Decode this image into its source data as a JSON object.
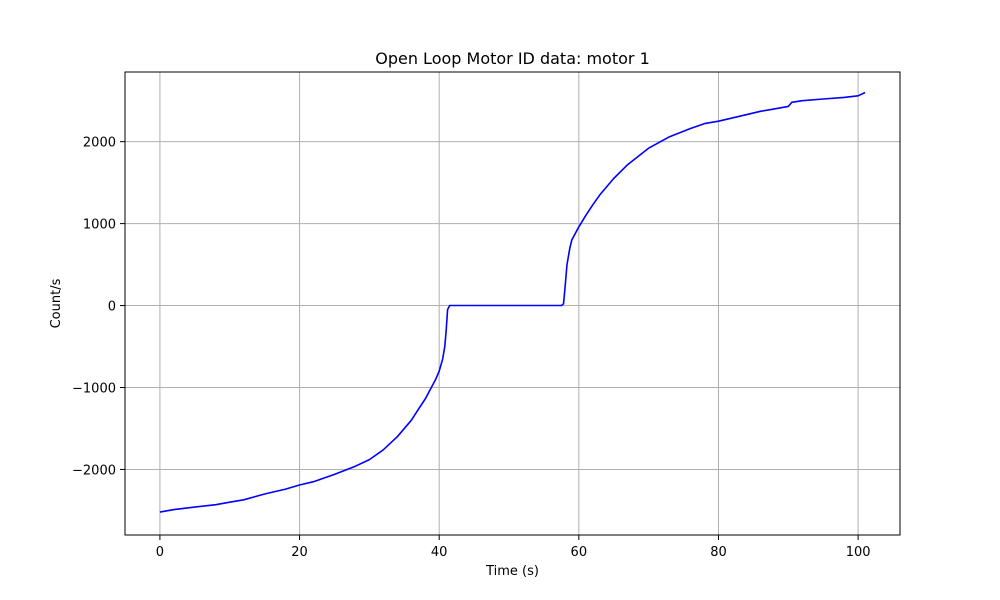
{
  "chart_data": {
    "type": "line",
    "title": "Open Loop Motor ID data: motor 1",
    "xlabel": "Time (s)",
    "ylabel": "Count/s",
    "xlim": [
      -5,
      106
    ],
    "ylim": [
      -2800,
      2850
    ],
    "xticks": [
      0,
      20,
      40,
      60,
      80,
      100
    ],
    "xtick_labels": [
      "0",
      "20",
      "40",
      "60",
      "80",
      "100"
    ],
    "yticks": [
      -2000,
      -1000,
      0,
      1000,
      2000
    ],
    "ytick_labels": [
      "−2000",
      "−1000",
      "0",
      "1000",
      "2000"
    ],
    "grid": true,
    "colors": {
      "line": "#0000ff",
      "grid": "#b0b0b0",
      "frame": "#000000"
    },
    "series": [
      {
        "x": [
          0,
          2,
          5,
          8,
          10,
          12,
          15,
          18,
          20,
          22,
          25,
          28,
          30,
          32,
          34,
          36,
          37,
          38,
          39,
          39.5,
          40,
          40.5,
          40.8,
          41,
          41.2,
          41.5,
          45,
          50,
          55,
          57,
          57.5,
          57.8,
          58,
          58.3,
          58.7,
          59,
          60,
          61,
          62,
          63,
          65,
          67,
          70,
          73,
          76,
          78,
          80,
          83,
          86,
          88,
          90,
          90.5,
          92,
          95,
          98,
          100,
          101
        ],
        "y": [
          -2520,
          -2490,
          -2460,
          -2430,
          -2400,
          -2370,
          -2300,
          -2240,
          -2190,
          -2150,
          -2060,
          -1960,
          -1880,
          -1760,
          -1600,
          -1400,
          -1270,
          -1140,
          -980,
          -900,
          -800,
          -650,
          -500,
          -300,
          -50,
          0,
          0,
          0,
          0,
          0,
          0,
          20,
          200,
          500,
          700,
          800,
          960,
          1100,
          1230,
          1350,
          1550,
          1720,
          1920,
          2060,
          2160,
          2220,
          2250,
          2310,
          2370,
          2400,
          2430,
          2480,
          2500,
          2520,
          2540,
          2560,
          2600
        ]
      }
    ]
  }
}
